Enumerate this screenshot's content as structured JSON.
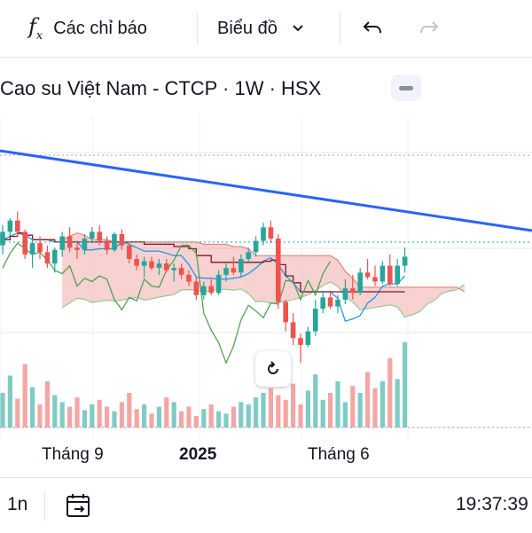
{
  "toolbar": {
    "indicators_label": "Các chỉ báo",
    "chart_type_label": "Biểu đồ",
    "icons": [
      "fx-icon",
      "chevron-down-icon",
      "undo-icon",
      "redo-icon"
    ]
  },
  "header": {
    "symbol_title": "Cao su Việt Nam - CTCP · 1W · HSX"
  },
  "xaxis": {
    "labels": [
      "Tháng 9",
      "2025",
      "Tháng 6"
    ]
  },
  "bottombar": {
    "range_label": "1n",
    "clock": "19:37:39"
  },
  "colors": {
    "up": "#26a69a",
    "down": "#ef5350",
    "trendline": "#2962ff",
    "kijun": "#801922",
    "tenkan": "#2196f3",
    "chikou": "#43a047",
    "cloud_bull": "#a5d6a7",
    "cloud_bear": "#ef9a9a"
  },
  "chart_data": {
    "type": "candlestick",
    "interval": "1W",
    "indicators": [
      "Ichimoku Cloud",
      "Volume",
      "Trend line"
    ],
    "grid": true,
    "candles_approx": [
      {
        "i": 0,
        "o": 46,
        "h": 55,
        "l": 42,
        "c": 52
      },
      {
        "i": 1,
        "o": 52,
        "h": 58,
        "l": 50,
        "c": 57
      },
      {
        "i": 2,
        "o": 57,
        "h": 61,
        "l": 50,
        "c": 52
      },
      {
        "i": 3,
        "o": 52,
        "h": 53,
        "l": 40,
        "c": 42
      },
      {
        "i": 4,
        "o": 42,
        "h": 49,
        "l": 36,
        "c": 47
      },
      {
        "i": 5,
        "o": 47,
        "h": 50,
        "l": 40,
        "c": 43
      },
      {
        "i": 6,
        "o": 43,
        "h": 46,
        "l": 36,
        "c": 38
      },
      {
        "i": 7,
        "o": 38,
        "h": 45,
        "l": 34,
        "c": 44
      },
      {
        "i": 8,
        "o": 44,
        "h": 52,
        "l": 41,
        "c": 50
      },
      {
        "i": 9,
        "o": 50,
        "h": 54,
        "l": 43,
        "c": 45
      },
      {
        "i": 10,
        "o": 45,
        "h": 48,
        "l": 40,
        "c": 44
      },
      {
        "i": 11,
        "o": 44,
        "h": 51,
        "l": 42,
        "c": 49
      },
      {
        "i": 12,
        "o": 49,
        "h": 54,
        "l": 47,
        "c": 52
      },
      {
        "i": 13,
        "o": 52,
        "h": 55,
        "l": 46,
        "c": 48
      },
      {
        "i": 14,
        "o": 48,
        "h": 50,
        "l": 42,
        "c": 44
      },
      {
        "i": 15,
        "o": 44,
        "h": 52,
        "l": 43,
        "c": 51
      },
      {
        "i": 16,
        "o": 51,
        "h": 53,
        "l": 44,
        "c": 46
      },
      {
        "i": 17,
        "o": 46,
        "h": 47,
        "l": 38,
        "c": 40
      },
      {
        "i": 18,
        "o": 40,
        "h": 42,
        "l": 35,
        "c": 37
      },
      {
        "i": 19,
        "o": 37,
        "h": 41,
        "l": 32,
        "c": 39
      },
      {
        "i": 20,
        "o": 39,
        "h": 41,
        "l": 35,
        "c": 36
      },
      {
        "i": 21,
        "o": 36,
        "h": 40,
        "l": 33,
        "c": 38
      },
      {
        "i": 22,
        "o": 38,
        "h": 40,
        "l": 34,
        "c": 35
      },
      {
        "i": 23,
        "o": 35,
        "h": 38,
        "l": 30,
        "c": 36
      },
      {
        "i": 24,
        "o": 36,
        "h": 38,
        "l": 31,
        "c": 33
      },
      {
        "i": 25,
        "o": 33,
        "h": 35,
        "l": 28,
        "c": 30
      },
      {
        "i": 26,
        "o": 30,
        "h": 32,
        "l": 22,
        "c": 24
      },
      {
        "i": 27,
        "o": 24,
        "h": 30,
        "l": 22,
        "c": 28
      },
      {
        "i": 28,
        "o": 28,
        "h": 31,
        "l": 24,
        "c": 25
      },
      {
        "i": 29,
        "o": 25,
        "h": 35,
        "l": 24,
        "c": 33
      },
      {
        "i": 30,
        "o": 33,
        "h": 38,
        "l": 30,
        "c": 36
      },
      {
        "i": 31,
        "o": 36,
        "h": 41,
        "l": 33,
        "c": 34
      },
      {
        "i": 32,
        "o": 34,
        "h": 42,
        "l": 32,
        "c": 40
      },
      {
        "i": 33,
        "o": 40,
        "h": 45,
        "l": 38,
        "c": 43
      },
      {
        "i": 34,
        "o": 43,
        "h": 50,
        "l": 41,
        "c": 48
      },
      {
        "i": 35,
        "o": 48,
        "h": 56,
        "l": 46,
        "c": 54
      },
      {
        "i": 36,
        "o": 54,
        "h": 57,
        "l": 47,
        "c": 49
      },
      {
        "i": 37,
        "o": 49,
        "h": 51,
        "l": 18,
        "c": 21
      },
      {
        "i": 38,
        "o": 21,
        "h": 22,
        "l": 8,
        "c": 12
      },
      {
        "i": 39,
        "o": 12,
        "h": 16,
        "l": 2,
        "c": 5
      },
      {
        "i": 40,
        "o": 5,
        "h": 7,
        "l": -6,
        "c": 2
      },
      {
        "i": 41,
        "o": 2,
        "h": 10,
        "l": 1,
        "c": 8
      },
      {
        "i": 42,
        "o": 8,
        "h": 22,
        "l": 6,
        "c": 18
      },
      {
        "i": 43,
        "o": 18,
        "h": 26,
        "l": 16,
        "c": 23
      },
      {
        "i": 44,
        "o": 23,
        "h": 25,
        "l": 18,
        "c": 19
      },
      {
        "i": 45,
        "o": 19,
        "h": 24,
        "l": 16,
        "c": 22
      },
      {
        "i": 46,
        "o": 22,
        "h": 31,
        "l": 20,
        "c": 27
      },
      {
        "i": 47,
        "o": 27,
        "h": 33,
        "l": 22,
        "c": 25
      },
      {
        "i": 48,
        "o": 25,
        "h": 36,
        "l": 24,
        "c": 34
      },
      {
        "i": 49,
        "o": 34,
        "h": 40,
        "l": 31,
        "c": 32
      },
      {
        "i": 50,
        "o": 32,
        "h": 37,
        "l": 28,
        "c": 30
      },
      {
        "i": 51,
        "o": 30,
        "h": 39,
        "l": 29,
        "c": 37
      },
      {
        "i": 52,
        "o": 37,
        "h": 42,
        "l": 28,
        "c": 29
      },
      {
        "i": 53,
        "o": 29,
        "h": 40,
        "l": 28,
        "c": 37
      },
      {
        "i": 54,
        "o": 37,
        "h": 45,
        "l": 34,
        "c": 41
      }
    ],
    "volume_approx": [
      30,
      45,
      25,
      55,
      35,
      20,
      40,
      28,
      22,
      18,
      26,
      15,
      20,
      24,
      18,
      14,
      22,
      30,
      16,
      20,
      12,
      18,
      26,
      22,
      14,
      18,
      10,
      16,
      20,
      14,
      12,
      18,
      22,
      20,
      26,
      30,
      34,
      28,
      24,
      38,
      20,
      32,
      46,
      24,
      30,
      40,
      22,
      36,
      30,
      48,
      34,
      40,
      60,
      42,
      74
    ]
  }
}
